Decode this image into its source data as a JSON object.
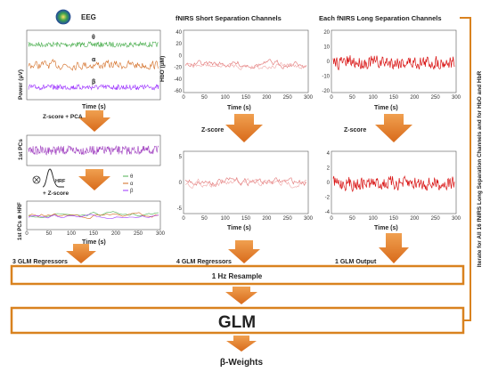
{
  "eeg": {
    "title": "EEG",
    "band_theta": "θ",
    "band_alpha": "α",
    "band_beta": "β",
    "ylabel": "Power (μV)",
    "xlabel": "Time (s)",
    "step_zscore_pca": "Z-score + PCA",
    "pcs_ylabel": "1st PCs",
    "hrf_label": "HRF",
    "plus_zscore": "+ Z-score",
    "legend": [
      "θ",
      "α",
      "β"
    ],
    "conv_ylabel": "1st PCs ⊗ HRF",
    "conv_xlabel": "Time (s)",
    "x_ticks": [
      "0",
      "50",
      "100",
      "150",
      "200",
      "250",
      "300"
    ]
  },
  "short": {
    "title": "fNIRS Short Separation Channels",
    "ylabel": "HbO (μM)",
    "xlabel": "Time (s)",
    "y_ticks": [
      "40",
      "20",
      "0",
      "-20",
      "-40",
      "-60"
    ],
    "x_ticks": [
      "0",
      "50",
      "100",
      "150",
      "200",
      "250",
      "300"
    ],
    "step_zscore": "Z-score",
    "z_y_ticks": [
      "5",
      "0",
      "-5"
    ],
    "z_xlabel": "Time (s)"
  },
  "long": {
    "title": "Each fNIRS Long Separation Channels",
    "y_ticks": [
      "20",
      "10",
      "0",
      "-10",
      "-20"
    ],
    "x_ticks": [
      "0",
      "50",
      "100",
      "150",
      "200",
      "250",
      "300"
    ],
    "xlabel": "Time (s)",
    "step_zscore": "Z-score",
    "z_y_ticks": [
      "4",
      "2",
      "0",
      "-2",
      "-4"
    ],
    "z_xlabel": "Time (s)"
  },
  "flow": {
    "regressors_eeg": "3 GLM Regressors",
    "regressors_fnirs": "4 GLM Regressors",
    "glm_output": "1 GLM Output",
    "resample": "1 Hz Resample",
    "glm": "GLM",
    "weights": "β-Weights",
    "iterate": "Iterate for All 16 fNIRS Long Separation Channels and for HbO and HbR"
  },
  "colors": {
    "arrow": "#e07a2a",
    "box": "#d9821f",
    "theta": "#4caf50",
    "alpha": "#d2691e",
    "beta": "#9b30ff",
    "pca": "#a040c0",
    "short_1": "#e07070",
    "short_2": "#f0a8a8",
    "long": "#d81010"
  }
}
